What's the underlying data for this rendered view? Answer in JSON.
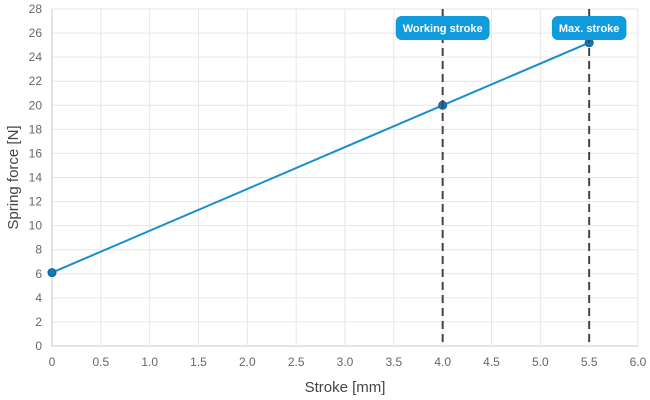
{
  "chart_data": {
    "type": "line",
    "title": "",
    "xlabel": "Stroke [mm]",
    "ylabel": "Spring force [N]",
    "xlim": [
      0,
      6
    ],
    "ylim": [
      0,
      28
    ],
    "x_ticks": [
      0,
      0.5,
      1.0,
      1.5,
      2.0,
      2.5,
      3.0,
      3.5,
      4.0,
      4.5,
      5.0,
      5.5,
      6.0
    ],
    "x_tick_labels": [
      "0",
      "0.5",
      "1.0",
      "1.5",
      "2.0",
      "2.5",
      "3.0",
      "3.5",
      "4.0",
      "4.5",
      "5.0",
      "5.5",
      "6.0"
    ],
    "y_ticks": [
      0,
      2,
      4,
      6,
      8,
      10,
      12,
      14,
      16,
      18,
      20,
      22,
      24,
      26,
      28
    ],
    "y_tick_labels": [
      "0",
      "2",
      "4",
      "6",
      "8",
      "10",
      "12",
      "14",
      "16",
      "18",
      "20",
      "22",
      "24",
      "26",
      "28"
    ],
    "grid": true,
    "legend": "none",
    "series": [
      {
        "color": "#168fd0",
        "points": [
          {
            "x": 0,
            "y": 6.1
          },
          {
            "x": 4.0,
            "y": 20.0
          },
          {
            "x": 5.5,
            "y": 25.2
          }
        ]
      }
    ],
    "annotations": [
      {
        "x": 4.0,
        "label": "Working stroke",
        "color": "#0f9bdc"
      },
      {
        "x": 5.5,
        "label": "Max. stroke",
        "color": "#0f9bdc"
      }
    ]
  }
}
